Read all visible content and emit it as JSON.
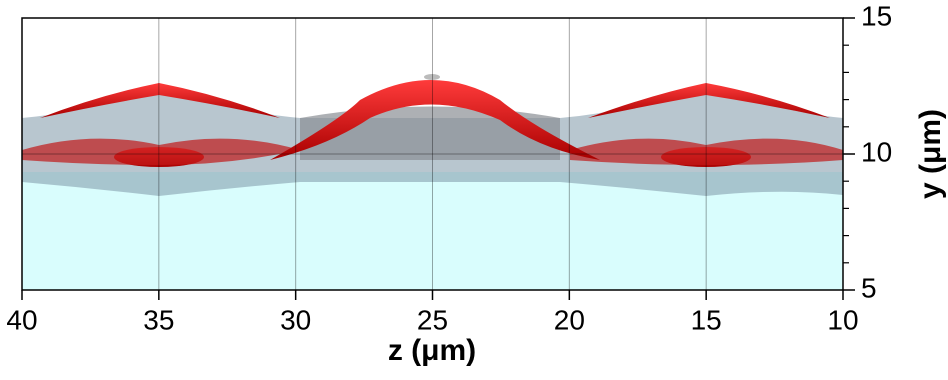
{
  "chart_data": {
    "type": "surface-render",
    "xlabel": "z (μm)",
    "ylabel": "y (μm)",
    "xlim": [
      40,
      10
    ],
    "ylim": [
      5,
      15
    ],
    "xticks": [
      40,
      35,
      30,
      25,
      20,
      15,
      10
    ],
    "yticks": [
      5,
      10,
      15
    ],
    "y_minor_ticks": [
      6,
      7,
      8,
      9,
      11,
      12,
      13,
      14
    ],
    "grid": true
  }
}
